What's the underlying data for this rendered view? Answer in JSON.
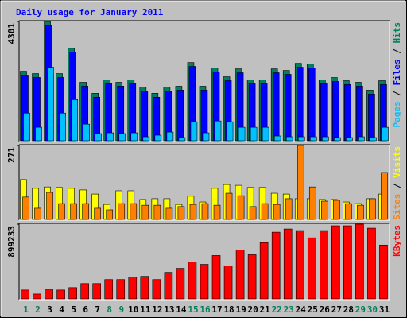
{
  "chart_data": [
    {
      "type": "bar",
      "title": "Daily usage for January 2011",
      "legend_separator": "/",
      "ylim": [
        0,
        4301
      ],
      "yticks": [
        4301
      ],
      "series": [
        {
          "name": "Hits",
          "color": "#00805c",
          "values": [
            2506,
            2421,
            4301,
            2421,
            3332,
            2108,
            1709,
            2193,
            2108,
            2193,
            1937,
            1709,
            1937,
            1965,
            2820,
            1965,
            2620,
            2307,
            2592,
            2193,
            2193,
            2592,
            2535,
            2791,
            2763,
            2193,
            2278,
            2165,
            2108,
            1823,
            2165
          ]
        },
        {
          "name": "Files",
          "color": "#0000ff",
          "values": [
            2366,
            2281,
            4161,
            2281,
            3192,
            1968,
            1569,
            2053,
            1968,
            2053,
            1797,
            1569,
            1797,
            1825,
            2680,
            1825,
            2480,
            2167,
            2452,
            2053,
            2053,
            2452,
            2395,
            2651,
            2623,
            2053,
            2138,
            2025,
            1968,
            1683,
            2025
          ]
        },
        {
          "name": "Pages",
          "color": "#00c0ff",
          "values": [
            997,
            484,
            2649,
            997,
            1481,
            598,
            256,
            285,
            256,
            285,
            142,
            199,
            313,
            114,
            684,
            285,
            712,
            684,
            484,
            484,
            484,
            171,
            142,
            142,
            142,
            142,
            114,
            114,
            142,
            114,
            484
          ]
        }
      ]
    },
    {
      "type": "bar",
      "legend_separator": "/",
      "ylim": [
        0,
        271
      ],
      "yticks": [
        271
      ],
      "series": [
        {
          "name": "Visits",
          "color": "#ffff00",
          "values": [
            146,
            114,
            119,
            117,
            114,
            108,
            93,
            55,
            105,
            105,
            73,
            76,
            76,
            55,
            85,
            64,
            114,
            128,
            125,
            117,
            117,
            96,
            93,
            76,
            76,
            73,
            73,
            64,
            58,
            76,
            93
          ]
        },
        {
          "name": "Sites",
          "color": "#ff8000",
          "values": [
            82,
            41,
            99,
            58,
            58,
            58,
            41,
            35,
            58,
            58,
            52,
            52,
            41,
            47,
            55,
            58,
            52,
            96,
            87,
            47,
            58,
            55,
            76,
            271,
            119,
            67,
            70,
            58,
            52,
            76,
            172
          ]
        }
      ]
    },
    {
      "type": "bar",
      "ylim": [
        0,
        899233
      ],
      "yticks": [
        899233
      ],
      "categories": [
        "1",
        "2",
        "3",
        "4",
        "5",
        "6",
        "7",
        "8",
        "9",
        "10",
        "11",
        "12",
        "13",
        "14",
        "15",
        "16",
        "17",
        "18",
        "19",
        "20",
        "21",
        "22",
        "23",
        "24",
        "25",
        "26",
        "27",
        "28",
        "29",
        "30",
        "31"
      ],
      "category_colors": [
        "#00805c",
        "#00805c",
        "#000000",
        "#000000",
        "#000000",
        "#000000",
        "#000000",
        "#00805c",
        "#00805c",
        "#000000",
        "#000000",
        "#000000",
        "#000000",
        "#000000",
        "#00805c",
        "#00805c",
        "#000000",
        "#000000",
        "#000000",
        "#000000",
        "#000000",
        "#00805c",
        "#00805c",
        "#000000",
        "#000000",
        "#000000",
        "#000000",
        "#000000",
        "#00805c",
        "#00805c",
        "#000000"
      ],
      "series": [
        {
          "name": "KBytes",
          "color": "#ff0000",
          "values": [
            106359,
            58014,
            116028,
            106359,
            135366,
            183711,
            183711,
            232056,
            232056,
            261063,
            270732,
            232056,
            319077,
            367422,
            444774,
            415767,
            522126,
            396429,
            589809,
            531795,
            676830,
            802527,
            841203,
            821865,
            734844,
            821865,
            879879,
            879879,
            899233,
            850872,
            647823
          ]
        }
      ]
    }
  ]
}
